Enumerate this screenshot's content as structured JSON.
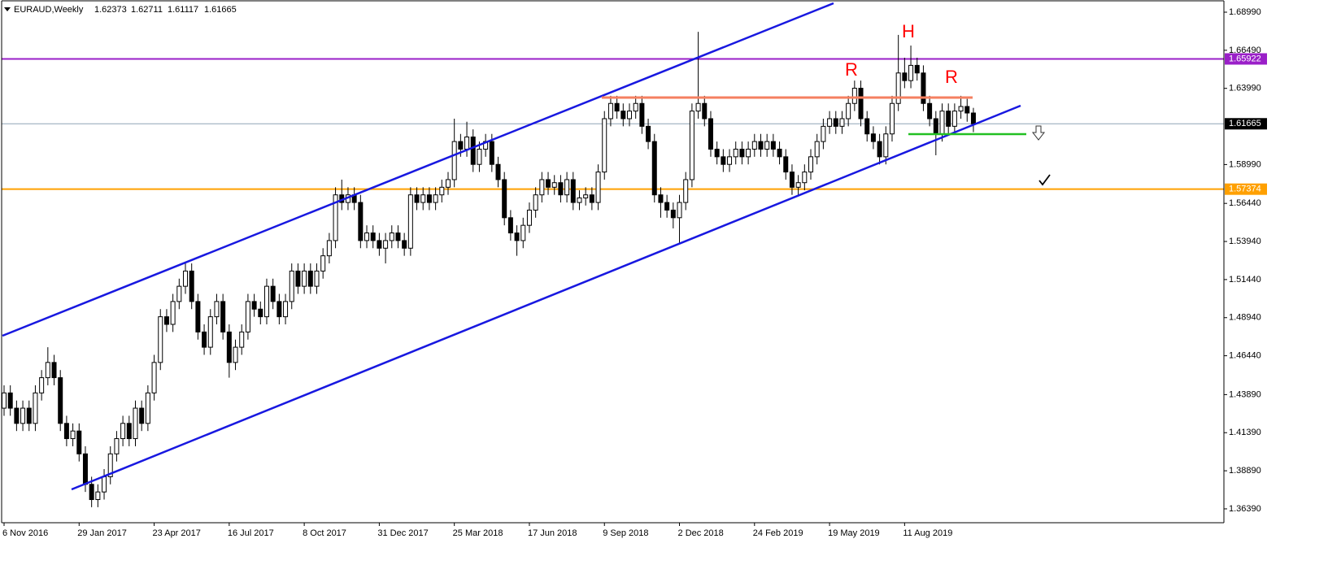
{
  "chart_data": {
    "type": "candlestick",
    "title": "EURAUD,Weekly",
    "categories": [
      "6 Nov 2016",
      null,
      null,
      null,
      null,
      null,
      null,
      null,
      null,
      null,
      null,
      null,
      "29 Jan 2017",
      null,
      null,
      null,
      null,
      null,
      null,
      null,
      null,
      null,
      null,
      null,
      "23 Apr 2017",
      null,
      null,
      null,
      null,
      null,
      null,
      null,
      null,
      null,
      null,
      null,
      "16 Jul 2017",
      null,
      null,
      null,
      null,
      null,
      null,
      null,
      null,
      null,
      null,
      null,
      "8 Oct 2017",
      null,
      null,
      null,
      null,
      null,
      null,
      null,
      null,
      null,
      null,
      null,
      "31 Dec 2017",
      null,
      null,
      null,
      null,
      null,
      null,
      null,
      null,
      null,
      null,
      null,
      "25 Mar 2018",
      null,
      null,
      null,
      null,
      null,
      null,
      null,
      null,
      null,
      null,
      null,
      "17 Jun 2018",
      null,
      null,
      null,
      null,
      null,
      null,
      null,
      null,
      null,
      null,
      null,
      "9 Sep 2018",
      null,
      null,
      null,
      null,
      null,
      null,
      null,
      null,
      null,
      null,
      null,
      "2 Dec 2018",
      null,
      null,
      null,
      null,
      null,
      null,
      null,
      null,
      null,
      null,
      null,
      "24 Feb 2019",
      null,
      null,
      null,
      null,
      null,
      null,
      null,
      null,
      null,
      null,
      null,
      "19 May 2019",
      null,
      null,
      null,
      null,
      null,
      null,
      null,
      null,
      null,
      null,
      null,
      "11 Aug 2019",
      null,
      null,
      null,
      null,
      null,
      null,
      null,
      null,
      null,
      null,
      null
    ],
    "open": [
      1.43,
      1.44,
      1.43,
      1.42,
      1.43,
      1.42,
      1.44,
      1.45,
      1.46,
      1.45,
      1.42,
      1.41,
      1.415,
      1.4,
      1.38,
      1.37,
      1.375,
      1.385,
      1.4,
      1.41,
      1.42,
      1.41,
      1.43,
      1.42,
      1.44,
      1.46,
      1.49,
      1.485,
      1.5,
      1.51,
      1.52,
      1.5,
      1.48,
      1.47,
      1.49,
      1.5,
      1.48,
      1.46,
      1.47,
      1.48,
      1.5,
      1.495,
      1.49,
      1.51,
      1.5,
      1.49,
      1.5,
      1.52,
      1.51,
      1.52,
      1.51,
      1.52,
      1.53,
      1.54,
      1.57,
      1.565,
      1.57,
      1.565,
      1.54,
      1.545,
      1.54,
      1.535,
      1.54,
      1.545,
      1.54,
      1.535,
      1.57,
      1.565,
      1.57,
      1.565,
      1.57,
      1.575,
      1.58,
      1.605,
      1.6,
      1.608,
      1.59,
      1.6,
      1.605,
      1.59,
      1.58,
      1.555,
      1.545,
      1.54,
      1.55,
      1.56,
      1.57,
      1.58,
      1.575,
      1.578,
      1.57,
      1.58,
      1.565,
      1.568,
      1.57,
      1.565,
      1.585,
      1.62,
      1.63,
      1.625,
      1.62,
      1.625,
      1.63,
      1.615,
      1.605,
      1.57,
      1.565,
      1.56,
      1.555,
      1.565,
      1.58,
      1.625,
      1.63,
      1.62,
      1.6,
      1.595,
      1.59,
      1.595,
      1.6,
      1.595,
      1.6,
      1.605,
      1.6,
      1.605,
      1.6,
      1.595,
      1.585,
      1.575,
      1.578,
      1.585,
      1.595,
      1.605,
      1.615,
      1.62,
      1.615,
      1.62,
      1.63,
      1.64,
      1.62,
      1.61,
      1.605,
      1.595,
      1.61,
      1.63,
      1.65,
      1.645,
      1.655,
      1.65,
      1.63,
      1.62,
      1.61,
      1.625,
      1.615,
      1.625,
      1.628,
      1.62373
    ],
    "high": [
      1.445,
      1.445,
      1.435,
      1.435,
      1.435,
      1.445,
      1.455,
      1.47,
      1.465,
      1.455,
      1.425,
      1.42,
      1.42,
      1.405,
      1.385,
      1.38,
      1.39,
      1.405,
      1.415,
      1.425,
      1.425,
      1.435,
      1.435,
      1.445,
      1.465,
      1.495,
      1.495,
      1.505,
      1.515,
      1.525,
      1.525,
      1.505,
      1.485,
      1.495,
      1.505,
      1.505,
      1.485,
      1.475,
      1.485,
      1.505,
      1.505,
      1.5,
      1.515,
      1.515,
      1.505,
      1.505,
      1.525,
      1.525,
      1.525,
      1.525,
      1.525,
      1.535,
      1.545,
      1.575,
      1.58,
      1.575,
      1.575,
      1.57,
      1.55,
      1.55,
      1.545,
      1.545,
      1.55,
      1.55,
      1.545,
      1.575,
      1.575,
      1.575,
      1.575,
      1.575,
      1.58,
      1.585,
      1.62,
      1.61,
      1.618,
      1.613,
      1.605,
      1.61,
      1.61,
      1.595,
      1.585,
      1.56,
      1.55,
      1.555,
      1.565,
      1.575,
      1.585,
      1.585,
      1.583,
      1.583,
      1.585,
      1.585,
      1.573,
      1.575,
      1.575,
      1.59,
      1.625,
      1.635,
      1.635,
      1.63,
      1.63,
      1.635,
      1.635,
      1.62,
      1.61,
      1.575,
      1.57,
      1.565,
      1.57,
      1.585,
      1.63,
      1.677,
      1.635,
      1.625,
      1.605,
      1.6,
      1.6,
      1.605,
      1.605,
      1.605,
      1.61,
      1.61,
      1.61,
      1.61,
      1.605,
      1.6,
      1.59,
      1.583,
      1.59,
      1.6,
      1.61,
      1.62,
      1.625,
      1.625,
      1.625,
      1.635,
      1.645,
      1.645,
      1.625,
      1.615,
      1.61,
      1.615,
      1.635,
      1.675,
      1.66,
      1.668,
      1.66,
      1.655,
      1.635,
      1.625,
      1.63,
      1.63,
      1.63,
      1.635,
      1.633,
      1.62711
    ],
    "low": [
      1.425,
      1.425,
      1.415,
      1.415,
      1.415,
      1.415,
      1.435,
      1.445,
      1.445,
      1.415,
      1.405,
      1.405,
      1.395,
      1.375,
      1.365,
      1.365,
      1.37,
      1.38,
      1.395,
      1.405,
      1.405,
      1.405,
      1.415,
      1.415,
      1.435,
      1.455,
      1.48,
      1.48,
      1.495,
      1.505,
      1.495,
      1.475,
      1.465,
      1.465,
      1.485,
      1.475,
      1.45,
      1.455,
      1.465,
      1.475,
      1.49,
      1.485,
      1.485,
      1.495,
      1.485,
      1.485,
      1.495,
      1.505,
      1.505,
      1.505,
      1.505,
      1.515,
      1.525,
      1.535,
      1.56,
      1.56,
      1.56,
      1.535,
      1.535,
      1.535,
      1.53,
      1.525,
      1.535,
      1.535,
      1.53,
      1.53,
      1.56,
      1.56,
      1.56,
      1.56,
      1.565,
      1.57,
      1.575,
      1.595,
      1.595,
      1.585,
      1.585,
      1.595,
      1.585,
      1.575,
      1.55,
      1.54,
      1.53,
      1.535,
      1.545,
      1.555,
      1.565,
      1.57,
      1.57,
      1.565,
      1.565,
      1.56,
      1.56,
      1.563,
      1.56,
      1.56,
      1.58,
      1.615,
      1.62,
      1.615,
      1.615,
      1.62,
      1.61,
      1.6,
      1.565,
      1.555,
      1.555,
      1.548,
      1.538,
      1.56,
      1.575,
      1.62,
      1.615,
      1.595,
      1.59,
      1.585,
      1.585,
      1.59,
      1.59,
      1.59,
      1.595,
      1.595,
      1.595,
      1.595,
      1.59,
      1.58,
      1.57,
      1.57,
      1.573,
      1.58,
      1.59,
      1.6,
      1.61,
      1.61,
      1.61,
      1.615,
      1.625,
      1.615,
      1.605,
      1.6,
      1.59,
      1.59,
      1.605,
      1.625,
      1.64,
      1.64,
      1.645,
      1.625,
      1.615,
      1.596,
      1.605,
      1.61,
      1.61,
      1.62,
      1.618,
      1.61117
    ],
    "close": [
      1.44,
      1.43,
      1.42,
      1.43,
      1.42,
      1.44,
      1.45,
      1.46,
      1.45,
      1.42,
      1.41,
      1.415,
      1.4,
      1.38,
      1.37,
      1.375,
      1.385,
      1.4,
      1.41,
      1.42,
      1.41,
      1.43,
      1.42,
      1.44,
      1.46,
      1.49,
      1.485,
      1.5,
      1.51,
      1.52,
      1.5,
      1.48,
      1.47,
      1.49,
      1.5,
      1.48,
      1.46,
      1.47,
      1.48,
      1.5,
      1.495,
      1.49,
      1.51,
      1.5,
      1.49,
      1.5,
      1.52,
      1.51,
      1.52,
      1.51,
      1.52,
      1.53,
      1.54,
      1.57,
      1.565,
      1.57,
      1.565,
      1.54,
      1.545,
      1.54,
      1.535,
      1.54,
      1.545,
      1.54,
      1.535,
      1.57,
      1.565,
      1.57,
      1.565,
      1.57,
      1.575,
      1.58,
      1.605,
      1.6,
      1.608,
      1.59,
      1.6,
      1.605,
      1.59,
      1.58,
      1.555,
      1.545,
      1.54,
      1.55,
      1.56,
      1.57,
      1.58,
      1.575,
      1.578,
      1.57,
      1.58,
      1.565,
      1.568,
      1.57,
      1.565,
      1.585,
      1.62,
      1.63,
      1.625,
      1.62,
      1.625,
      1.63,
      1.615,
      1.605,
      1.57,
      1.565,
      1.56,
      1.555,
      1.565,
      1.58,
      1.625,
      1.63,
      1.62,
      1.6,
      1.595,
      1.59,
      1.595,
      1.6,
      1.595,
      1.6,
      1.605,
      1.6,
      1.605,
      1.6,
      1.595,
      1.585,
      1.575,
      1.578,
      1.585,
      1.595,
      1.605,
      1.615,
      1.62,
      1.615,
      1.62,
      1.63,
      1.64,
      1.62,
      1.61,
      1.605,
      1.595,
      1.61,
      1.63,
      1.65,
      1.645,
      1.655,
      1.65,
      1.63,
      1.62,
      1.61,
      1.625,
      1.615,
      1.625,
      1.628,
      1.62373,
      1.61665
    ],
    "up_color": "#ffffff",
    "down_color": "#000000",
    "ylim": [
      1.3548,
      1.6979
    ],
    "yticks": [
      {
        "value": 1.6899,
        "label": "1.68990"
      },
      {
        "value": 1.6649,
        "label": "1.66490"
      },
      {
        "value": 1.6399,
        "label": "1.63990"
      },
      {
        "value": 1.5899,
        "label": "1.58990"
      },
      {
        "value": 1.5644,
        "label": "1.56440"
      },
      {
        "value": 1.5394,
        "label": "1.53940"
      },
      {
        "value": 1.5144,
        "label": "1.51440"
      },
      {
        "value": 1.4894,
        "label": "1.48940"
      },
      {
        "value": 1.4644,
        "label": "1.46440"
      },
      {
        "value": 1.4389,
        "label": "1.43890"
      },
      {
        "value": 1.4139,
        "label": "1.41390"
      },
      {
        "value": 1.3889,
        "label": "1.38890"
      },
      {
        "value": 1.3639,
        "label": "1.36390"
      }
    ],
    "levels": [
      {
        "value": 1.65922,
        "color": "#9a1fc8"
      },
      {
        "value": 1.57374,
        "color": "#ffa000"
      }
    ],
    "current_color": "#8fa3b5",
    "annotations": [
      "R",
      "H",
      "R"
    ]
  }
}
